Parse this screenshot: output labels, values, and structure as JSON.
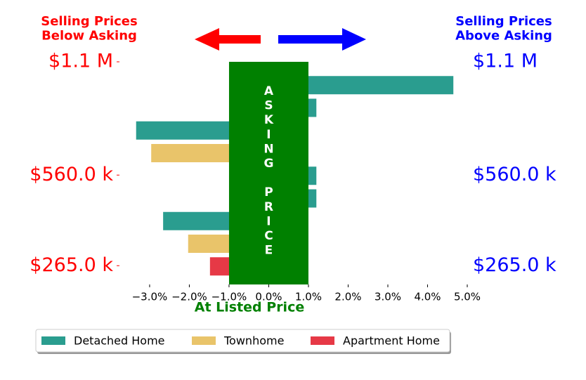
{
  "chart_data": {
    "type": "bar",
    "left_title": "Selling Prices\nBelow Asking",
    "right_title": "Selling Prices\nAbove Asking",
    "xlabel": "At Listed Price",
    "categories": [
      "$1.1 M",
      null,
      null,
      null,
      null,
      "$560.0 k",
      null,
      null,
      null,
      "$265.0 k"
    ],
    "series": [
      {
        "name": "Detached Home",
        "color": "#2a9d8f",
        "values": [
          null,
          4.65,
          1.2,
          -3.34,
          null,
          1.2,
          1.2,
          -2.66,
          null,
          null
        ]
      },
      {
        "name": "Townhome",
        "color": "#e9c46a",
        "values": [
          null,
          null,
          null,
          null,
          -2.96,
          null,
          null,
          null,
          -2.03,
          null
        ]
      },
      {
        "name": "Apartment Home",
        "color": "#e63946",
        "values": [
          null,
          null,
          null,
          null,
          null,
          null,
          null,
          null,
          null,
          -1.48
        ]
      }
    ],
    "band": {
      "label": "ASKING PRICE",
      "range": [
        -1,
        1
      ],
      "color": "#008000"
    },
    "xlim": [
      -3.76,
      5.0
    ],
    "xticks": [
      {
        "value": -3,
        "label": "−3.0%"
      },
      {
        "value": -2,
        "label": "−2.0%"
      },
      {
        "value": -1,
        "label": "−1.0%"
      },
      {
        "value": 0,
        "label": "0.0%"
      },
      {
        "value": 1,
        "label": "1.0%"
      },
      {
        "value": 2,
        "label": "2.0%"
      },
      {
        "value": 3,
        "label": "3.0%"
      },
      {
        "value": 4,
        "label": "4.0%"
      },
      {
        "value": 5,
        "label": "5.0%"
      }
    ],
    "left_color": "#ff0000",
    "right_color": "#0000ff"
  }
}
